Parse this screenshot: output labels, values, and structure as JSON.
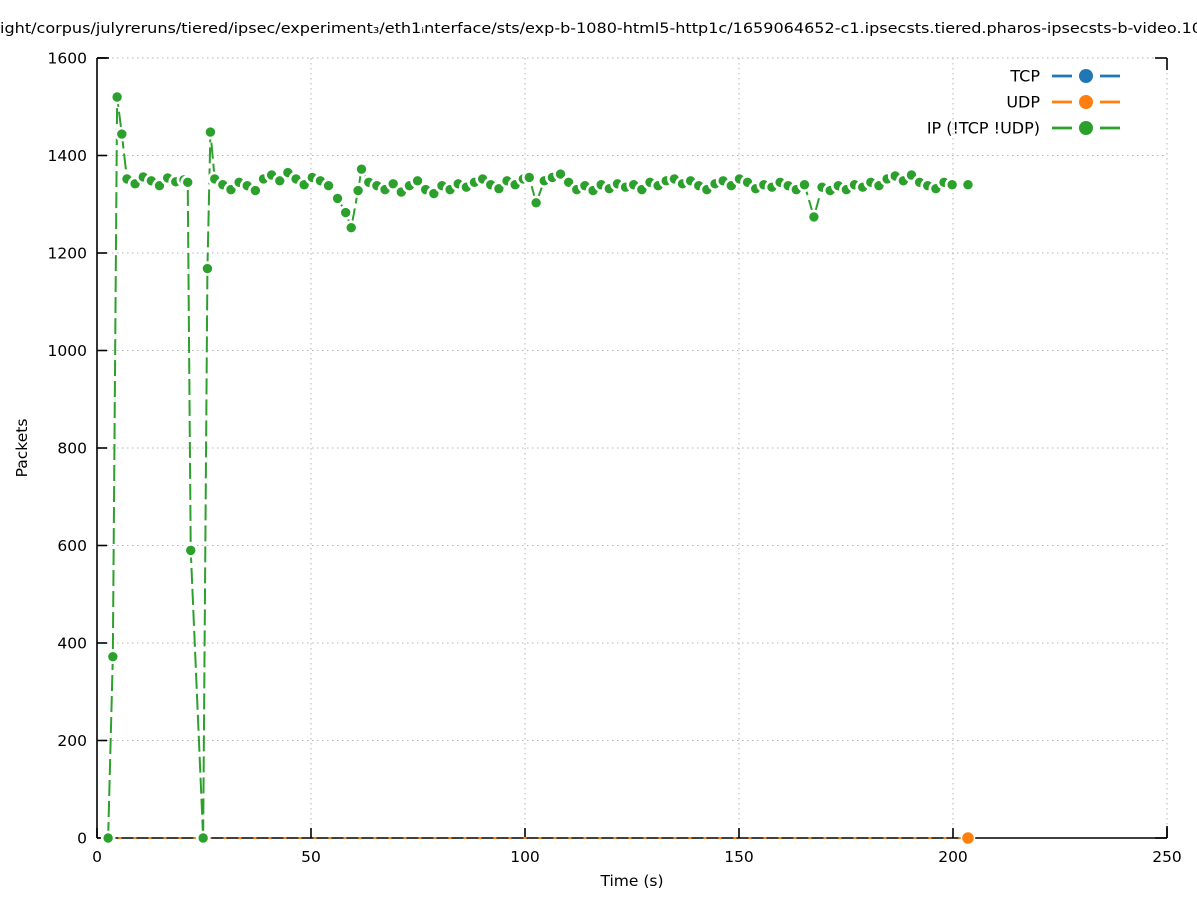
{
  "title": "ight/corpus/julyreruns/tiered/ipsec/experiment₃/eth1ᵢnterface/sts/exp-b-1080-html5-http1c/1659064652-c1.ipsecsts.tiered.pharos-ipsecsts-b-video.10",
  "colors": {
    "tcp": "#1f77b4",
    "udp": "#ff7f0e",
    "ip": "#2ca02c",
    "grid": "#b4b4b4",
    "axis": "#000000",
    "background": "#ffffff"
  },
  "chart_data": {
    "type": "line",
    "title": "ight/corpus/julyreruns/tiered/ipsec/experiment₃/eth1ᵢnterface/sts/exp-b-1080-html5-http1c/1659064652-c1.ipsecsts.tiered.pharos-ipsecsts-b-video.10",
    "xlabel": "Time (s)",
    "ylabel": "Packets",
    "xlim": [
      0,
      250
    ],
    "ylim": [
      0,
      1600
    ],
    "xticks": [
      0,
      50,
      100,
      150,
      200,
      250
    ],
    "yticks": [
      0,
      200,
      400,
      600,
      800,
      1000,
      1200,
      1400,
      1600
    ],
    "grid": "dotted",
    "legend_position": "top-right-inside",
    "series": [
      {
        "name": "TCP",
        "color": "#1f77b4",
        "line_dash": "16 5",
        "markers": true,
        "points": []
      },
      {
        "name": "UDP",
        "color": "#ff7f0e",
        "line_dash": "3 12",
        "markers": false,
        "end_marker": true,
        "points": [
          [
            1.5,
            0
          ],
          [
            203.5,
            0
          ]
        ]
      },
      {
        "name": "IP (!TCP  !UDP)",
        "color": "#2ca02c",
        "line_dash": "16 5",
        "markers": true,
        "points": [
          [
            2.6,
            0
          ],
          [
            3.7,
            372
          ],
          [
            4.7,
            1520
          ],
          [
            5.8,
            1444
          ],
          [
            7.0,
            1352
          ],
          [
            8.9,
            1342
          ],
          [
            10.8,
            1356
          ],
          [
            12.7,
            1348
          ],
          [
            14.6,
            1338
          ],
          [
            16.5,
            1354
          ],
          [
            18.4,
            1346
          ],
          [
            20.3,
            1350
          ],
          [
            21.2,
            1345
          ],
          [
            21.9,
            590
          ],
          [
            24.8,
            0
          ],
          [
            25.8,
            1168
          ],
          [
            26.5,
            1448
          ],
          [
            27.5,
            1352
          ],
          [
            29.4,
            1340
          ],
          [
            31.3,
            1330
          ],
          [
            33.2,
            1345
          ],
          [
            35.1,
            1338
          ],
          [
            37.0,
            1328
          ],
          [
            38.9,
            1352
          ],
          [
            40.8,
            1360
          ],
          [
            42.7,
            1348
          ],
          [
            44.6,
            1365
          ],
          [
            46.5,
            1352
          ],
          [
            48.4,
            1340
          ],
          [
            50.3,
            1355
          ],
          [
            52.2,
            1348
          ],
          [
            54.1,
            1338
          ],
          [
            56.2,
            1312
          ],
          [
            58.1,
            1283
          ],
          [
            59.4,
            1252
          ],
          [
            61.0,
            1328
          ],
          [
            61.8,
            1372
          ],
          [
            63.5,
            1345
          ],
          [
            65.4,
            1338
          ],
          [
            67.3,
            1330
          ],
          [
            69.2,
            1342
          ],
          [
            71.1,
            1325
          ],
          [
            73.0,
            1338
          ],
          [
            74.9,
            1348
          ],
          [
            76.8,
            1330
          ],
          [
            78.7,
            1322
          ],
          [
            80.6,
            1338
          ],
          [
            82.5,
            1330
          ],
          [
            84.4,
            1342
          ],
          [
            86.3,
            1335
          ],
          [
            88.2,
            1345
          ],
          [
            90.1,
            1352
          ],
          [
            92.0,
            1340
          ],
          [
            93.9,
            1332
          ],
          [
            95.8,
            1348
          ],
          [
            97.7,
            1340
          ],
          [
            99.6,
            1352
          ],
          [
            101.0,
            1355
          ],
          [
            102.6,
            1303
          ],
          [
            104.5,
            1348
          ],
          [
            106.4,
            1355
          ],
          [
            108.3,
            1362
          ],
          [
            110.2,
            1345
          ],
          [
            112.1,
            1330
          ],
          [
            114.0,
            1338
          ],
          [
            115.9,
            1328
          ],
          [
            117.8,
            1340
          ],
          [
            119.7,
            1332
          ],
          [
            121.6,
            1342
          ],
          [
            123.5,
            1335
          ],
          [
            125.4,
            1340
          ],
          [
            127.3,
            1330
          ],
          [
            129.2,
            1345
          ],
          [
            131.1,
            1338
          ],
          [
            133.0,
            1348
          ],
          [
            134.9,
            1352
          ],
          [
            136.8,
            1342
          ],
          [
            138.7,
            1348
          ],
          [
            140.6,
            1338
          ],
          [
            142.5,
            1330
          ],
          [
            144.4,
            1342
          ],
          [
            146.3,
            1348
          ],
          [
            148.2,
            1338
          ],
          [
            150.1,
            1352
          ],
          [
            152.0,
            1345
          ],
          [
            153.9,
            1332
          ],
          [
            155.8,
            1340
          ],
          [
            157.7,
            1335
          ],
          [
            159.6,
            1345
          ],
          [
            161.5,
            1338
          ],
          [
            163.4,
            1330
          ],
          [
            165.3,
            1340
          ],
          [
            167.5,
            1274
          ],
          [
            169.4,
            1335
          ],
          [
            171.3,
            1328
          ],
          [
            173.2,
            1338
          ],
          [
            175.1,
            1330
          ],
          [
            177.0,
            1340
          ],
          [
            178.9,
            1335
          ],
          [
            180.8,
            1345
          ],
          [
            182.7,
            1338
          ],
          [
            184.6,
            1352
          ],
          [
            186.5,
            1358
          ],
          [
            188.4,
            1348
          ],
          [
            190.3,
            1360
          ],
          [
            192.2,
            1345
          ],
          [
            194.1,
            1338
          ],
          [
            196.0,
            1332
          ],
          [
            197.9,
            1345
          ],
          [
            199.8,
            1340
          ],
          [
            203.5,
            1340
          ]
        ]
      }
    ]
  }
}
